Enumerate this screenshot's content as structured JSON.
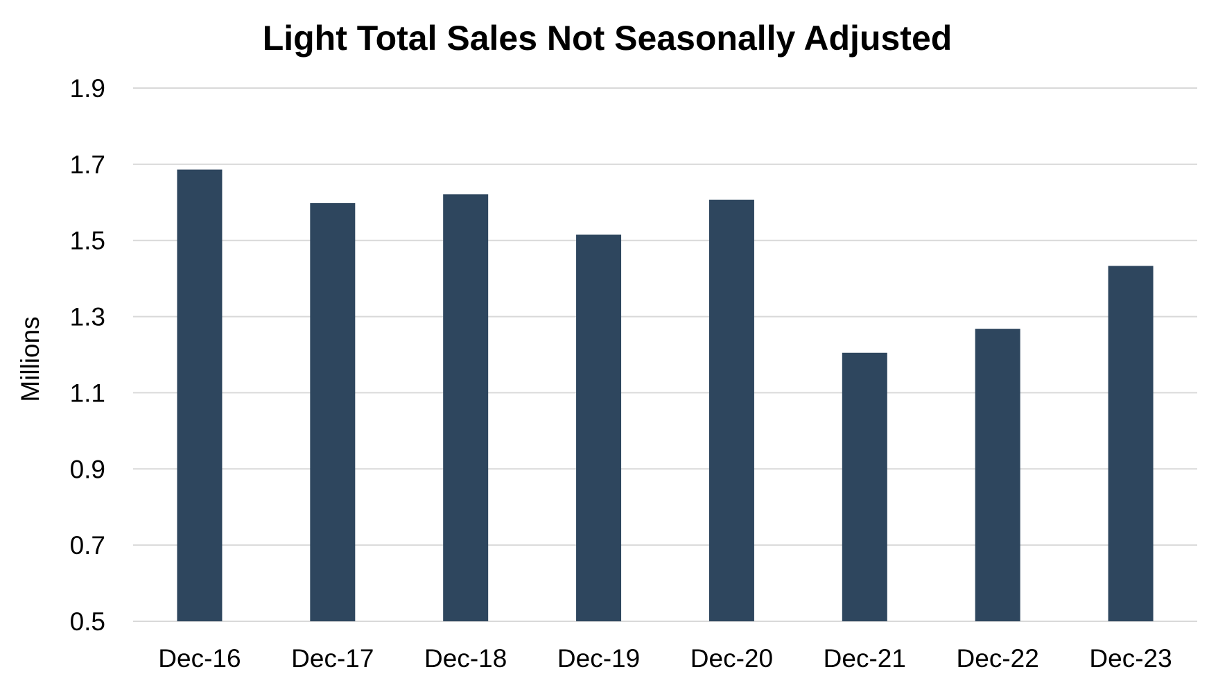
{
  "chart_data": {
    "type": "bar",
    "title": "Light Total Sales Not Seasonally Adjusted",
    "xlabel": "",
    "ylabel": "Millions",
    "ylim": [
      0.5,
      1.9
    ],
    "yticks": [
      "0.5",
      "0.7",
      "0.9",
      "1.1",
      "1.3",
      "1.5",
      "1.7",
      "1.9"
    ],
    "categories": [
      "Dec-16",
      "Dec-17",
      "Dec-18",
      "Dec-19",
      "Dec-20",
      "Dec-21",
      "Dec-22",
      "Dec-23"
    ],
    "values": [
      1.686,
      1.598,
      1.621,
      1.515,
      1.607,
      1.205,
      1.268,
      1.433
    ],
    "grid": true,
    "bar_color": "#2e465e",
    "grid_color": "#d9d9d9"
  }
}
